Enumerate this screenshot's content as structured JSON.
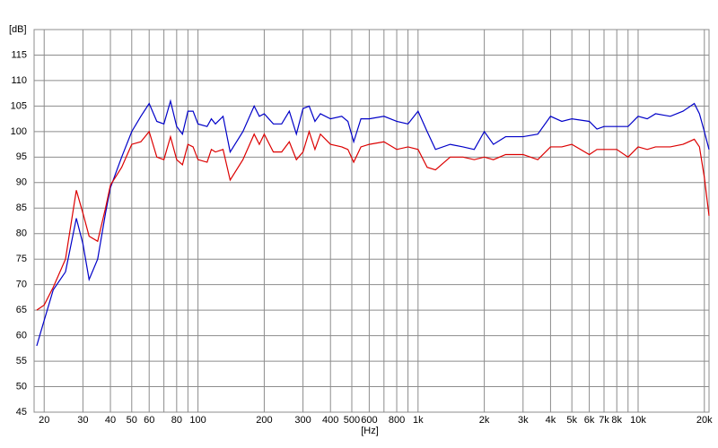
{
  "chart_data": {
    "type": "line",
    "y_label": "[dB]",
    "x_label": "[Hz]",
    "xscale": "log",
    "grid": true,
    "xlim": [
      18,
      21000
    ],
    "ylim": [
      45,
      120
    ],
    "yticks": [
      45,
      50,
      55,
      60,
      65,
      70,
      75,
      80,
      85,
      90,
      95,
      100,
      105,
      110,
      115
    ],
    "xticks": [
      20,
      30,
      40,
      50,
      60,
      80,
      100,
      200,
      300,
      400,
      500,
      600,
      800,
      {
        "value": 1000,
        "label": "1k"
      },
      {
        "value": 2000,
        "label": "2k"
      },
      {
        "value": 3000,
        "label": "3k"
      },
      {
        "value": 4000,
        "label": "4k"
      },
      {
        "value": 5000,
        "label": "5k"
      },
      {
        "value": 6000,
        "label": "6k"
      },
      {
        "value": 7000,
        "label": "7k"
      },
      {
        "value": 8000,
        "label": "8k"
      },
      {
        "value": 10000,
        "label": "10k"
      },
      {
        "value": 20000,
        "label": "20k"
      }
    ],
    "xgrid_minor": [
      70,
      90,
      700,
      900,
      9000
    ],
    "x": [
      18.5,
      20,
      22,
      25,
      28,
      30,
      32,
      35,
      38,
      40,
      45,
      50,
      55,
      60,
      65,
      70,
      75,
      80,
      85,
      90,
      95,
      100,
      110,
      115,
      120,
      130,
      140,
      160,
      180,
      190,
      200,
      220,
      240,
      260,
      280,
      300,
      320,
      340,
      360,
      400,
      450,
      480,
      510,
      550,
      600,
      700,
      800,
      900,
      1000,
      1100,
      1200,
      1400,
      1600,
      1800,
      2000,
      2200,
      2500,
      3000,
      3500,
      4000,
      4500,
      5000,
      6000,
      6500,
      7000,
      8000,
      9000,
      10000,
      11000,
      12000,
      14000,
      16000,
      18000,
      19000,
      20000,
      21000
    ],
    "series": [
      {
        "color": "#0000c8",
        "values": [
          58,
          63,
          69,
          72.5,
          83,
          78,
          71,
          75,
          84,
          89,
          95,
          100,
          103,
          105.5,
          102,
          101.5,
          106,
          101,
          99.5,
          104,
          104,
          101.5,
          101,
          102.5,
          101.5,
          103,
          96,
          100,
          105,
          103,
          103.5,
          101.5,
          101.5,
          104,
          99.5,
          104.5,
          105,
          102,
          103.5,
          102.5,
          103,
          102,
          98,
          102.5,
          102.5,
          103,
          102,
          101.5,
          104,
          100,
          96.5,
          97.5,
          97,
          96.5,
          100,
          97.5,
          99,
          99,
          99.5,
          103,
          102,
          102.5,
          102,
          100.5,
          101,
          101,
          101,
          103,
          102.5,
          103.5,
          103,
          104,
          105.5,
          103.5,
          100,
          96.5
        ]
      },
      {
        "color": "#dc0000",
        "values": [
          65,
          66,
          69.5,
          75,
          88.5,
          84,
          79.5,
          78.5,
          85,
          89.5,
          93,
          97.5,
          98,
          100,
          95,
          94.5,
          99,
          94.5,
          93.5,
          97.5,
          97,
          94.5,
          94,
          96.5,
          96,
          96.5,
          90.5,
          94.5,
          99.5,
          97.5,
          99.5,
          96,
          96,
          98,
          94.5,
          96,
          100,
          96.5,
          99.5,
          97.5,
          97,
          96.5,
          94,
          97,
          97.5,
          98,
          96.5,
          97,
          96.5,
          93,
          92.5,
          95,
          95,
          94.5,
          95,
          94.5,
          95.5,
          95.5,
          94.5,
          97,
          97,
          97.5,
          95.5,
          96.5,
          96.5,
          96.5,
          95,
          97,
          96.5,
          97,
          97,
          97.5,
          98.5,
          97,
          91,
          83.5
        ]
      }
    ]
  }
}
